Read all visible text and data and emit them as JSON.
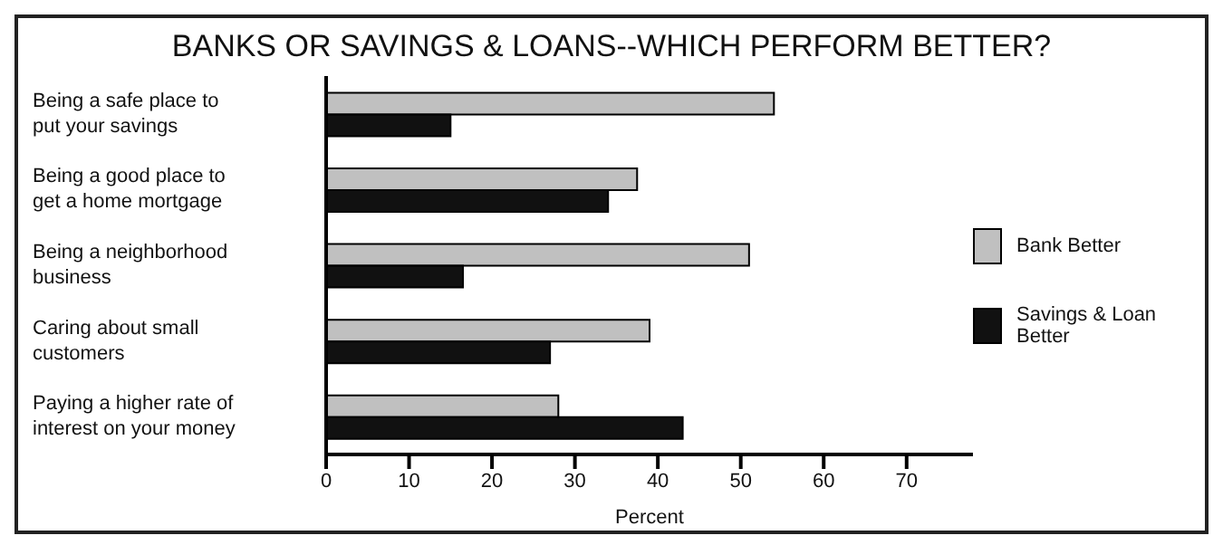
{
  "chart_data": {
    "type": "bar",
    "orientation": "horizontal",
    "title": "BANKS OR SAVINGS & LOANS--WHICH PERFORM BETTER?",
    "xlabel": "Percent",
    "categories": [
      "Being a safe place to put your savings",
      "Being a good place to get a home mortgage",
      "Being a neighborhood business",
      "Caring about small customers",
      "Paying a higher rate of interest on your money"
    ],
    "series": [
      {
        "name": "Bank Better",
        "color": "#c0c0c0",
        "values": [
          54,
          37.5,
          51,
          39,
          28
        ]
      },
      {
        "name": "Savings & Loan Better",
        "color": "#111111",
        "values": [
          15,
          34,
          16.5,
          27,
          43
        ]
      }
    ],
    "xlim": [
      0,
      78
    ],
    "xticks": [
      0,
      10,
      20,
      30,
      40,
      50,
      60,
      70
    ],
    "grid": false,
    "legend": "right"
  }
}
